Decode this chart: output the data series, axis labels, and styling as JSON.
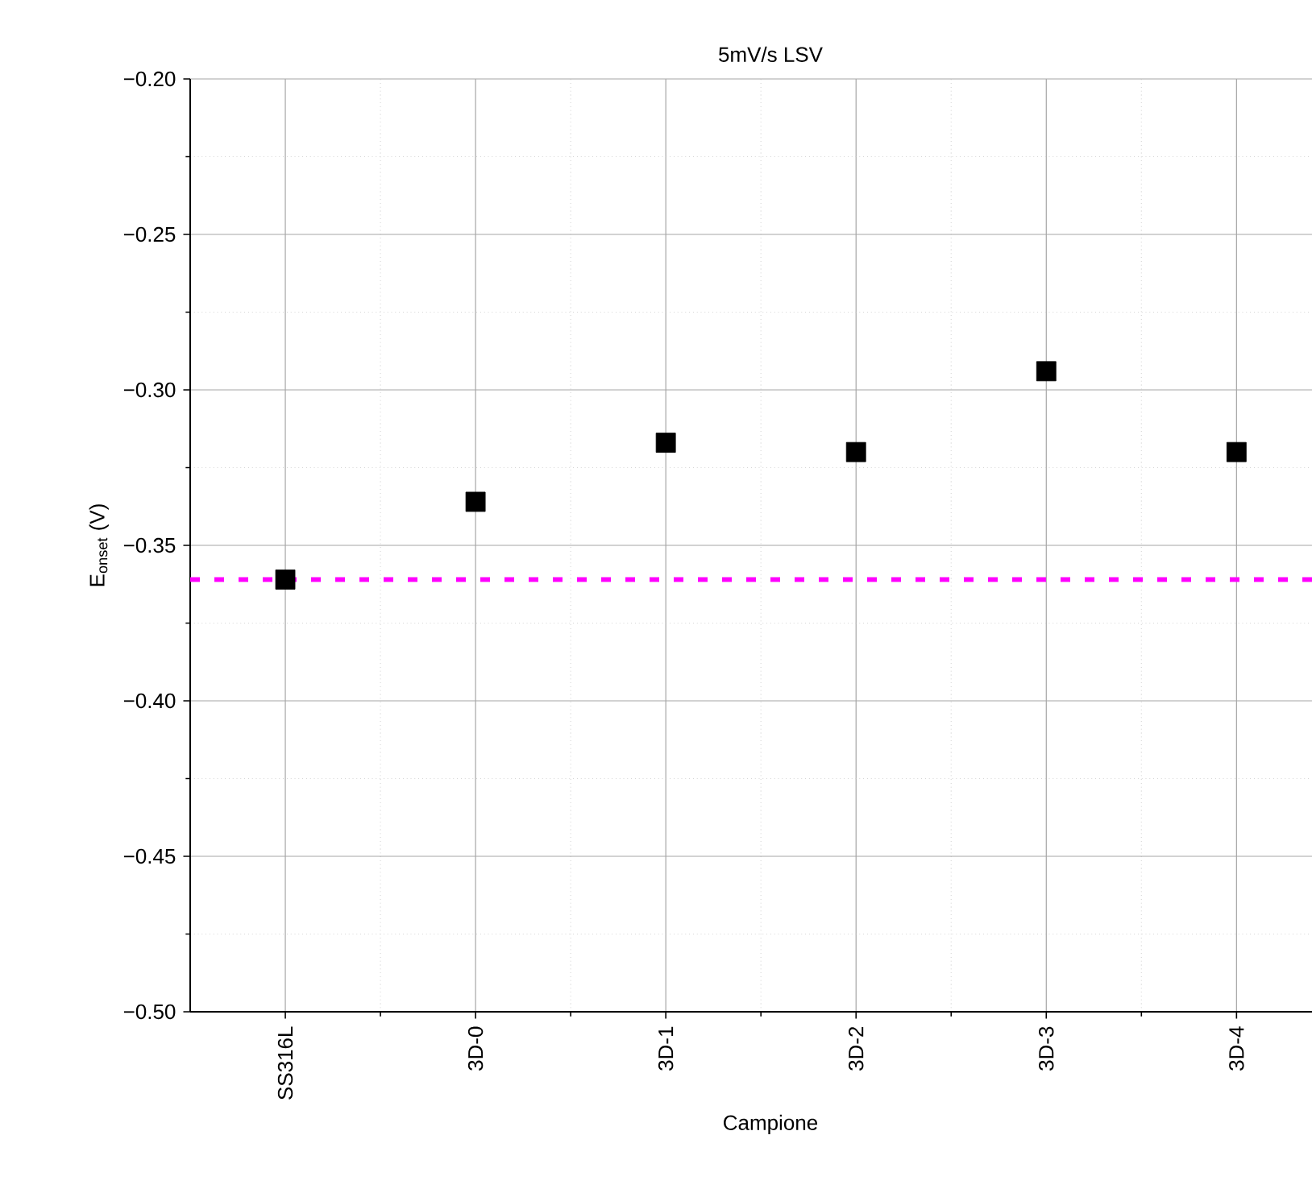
{
  "chart_data": {
    "type": "scatter",
    "title": "5mV/s LSV",
    "xlabel": "Campione",
    "ylabel": "E$_{onset}$ (V)",
    "categories": [
      "SS316L",
      "3D-0",
      "3D-1",
      "3D-2",
      "3D-3",
      "3D-4"
    ],
    "series": [
      {
        "color": "#000000",
        "values": [
          -0.361,
          -0.336,
          -0.317,
          -0.32,
          -0.294,
          -0.32
        ]
      }
    ],
    "marker": "square",
    "grid": true,
    "ylim": [
      -0.5,
      -0.2
    ],
    "yticks": [
      {
        "value": -0.5,
        "label": "−0.50"
      },
      {
        "value": -0.45,
        "label": "−0.45"
      },
      {
        "value": -0.4,
        "label": "−0.40"
      },
      {
        "value": -0.35,
        "label": "−0.35"
      },
      {
        "value": -0.3,
        "label": "−0.30"
      },
      {
        "value": -0.25,
        "label": "−0.25"
      },
      {
        "value": -0.2,
        "label": "−0.20"
      }
    ],
    "ref_lines": [
      {
        "axis": "y",
        "value": -0.361,
        "color": "#ff00ff",
        "line_style": "dashed"
      }
    ]
  }
}
